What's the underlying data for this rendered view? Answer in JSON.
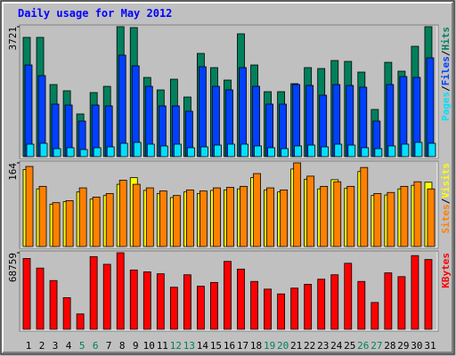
{
  "chart_data": {
    "type": "bar",
    "title": "Daily usage for May 2012",
    "categories": [
      "1",
      "2",
      "3",
      "4",
      "5",
      "6",
      "7",
      "8",
      "9",
      "10",
      "11",
      "12",
      "13",
      "14",
      "15",
      "16",
      "17",
      "18",
      "19",
      "20",
      "21",
      "22",
      "23",
      "24",
      "25",
      "26",
      "27",
      "28",
      "29",
      "30",
      "31"
    ],
    "category_colors": [
      "#000000",
      "#000000",
      "#000000",
      "#000000",
      "#00805c",
      "#00805c",
      "#000000",
      "#000000",
      "#000000",
      "#000000",
      "#000000",
      "#00805c",
      "#00805c",
      "#000000",
      "#000000",
      "#000000",
      "#000000",
      "#000000",
      "#00805c",
      "#00805c",
      "#000000",
      "#000000",
      "#000000",
      "#000000",
      "#000000",
      "#00805c",
      "#00805c",
      "#000000",
      "#000000",
      "#000000",
      "#000000"
    ],
    "legend_separator": "/",
    "panels": [
      {
        "ylim": [
          0,
          3721
        ],
        "yticks": [
          3721
        ],
        "series": [
          {
            "name": "Pages",
            "color": "#00e0ff",
            "values": [
              357,
              382,
              229,
              255,
              204,
              255,
              280,
              382,
              408,
              357,
              306,
              357,
              255,
              280,
              331,
              357,
              357,
              306,
              255,
              229,
              306,
              331,
              280,
              357,
              331,
              255,
              229,
              306,
              357,
              408,
              382
            ]
          },
          {
            "name": "Files",
            "color": "#0040ff",
            "values": [
              2625,
              2320,
              1504,
              1478,
              1019,
              1478,
              1453,
              2906,
              2600,
              2014,
              1453,
              1453,
              1300,
              2574,
              2014,
              1912,
              2549,
              2014,
              1504,
              1504,
              2065,
              2039,
              1759,
              2065,
              2039,
              1988,
              1019,
              2065,
              2294,
              2269,
              2829
            ]
          },
          {
            "name": "Hits",
            "color": "#00805c",
            "values": [
              3415,
              3415,
              2064,
              1886,
              1223,
              1835,
              2013,
              3721,
              3696,
              2268,
              1911,
              2217,
              1707,
              2956,
              2549,
              2192,
              3517,
              2625,
              1860,
              1860,
              2090,
              2549,
              2523,
              2752,
              2727,
              2421,
              1351,
              2701,
              2447,
              3160,
              3721
            ]
          }
        ]
      },
      {
        "ylim": [
          0,
          164
        ],
        "yticks": [
          164
        ],
        "series": [
          {
            "name": "Sites",
            "color": "#ff8000",
            "values": [
              157,
              118,
              86,
              90,
              115,
              97,
              104,
              130,
              122,
              115,
              109,
              100,
              111,
              109,
              115,
              116,
              118,
              143,
              115,
              111,
              164,
              138,
              118,
              127,
              118,
              155,
              104,
              106,
              118,
              127,
              113
            ]
          },
          {
            "name": "Visits",
            "color": "#ffff00",
            "values": [
              151,
              113,
              83,
              88,
              107,
              93,
              100,
              122,
              135,
              110,
              104,
              96,
              107,
              104,
              110,
              111,
              113,
              135,
              111,
              107,
              152,
              132,
              113,
              131,
              114,
              147,
              100,
              101,
              113,
              120,
              126
            ]
          }
        ]
      },
      {
        "ylim": [
          0,
          68759
        ],
        "yticks": [
          68759
        ],
        "series": [
          {
            "name": "KBytes",
            "color": "#ff0000",
            "values": [
              63600,
              55000,
              43800,
              28400,
              13800,
              65300,
              58400,
              68759,
              53300,
              51600,
              49900,
              37800,
              49000,
              38700,
              42100,
              61000,
              54100,
              43000,
              36100,
              31800,
              37000,
              40400,
              45000,
              49000,
              59300,
              43000,
              24100,
              50700,
              47300,
              66200,
              62700
            ]
          }
        ]
      }
    ]
  }
}
